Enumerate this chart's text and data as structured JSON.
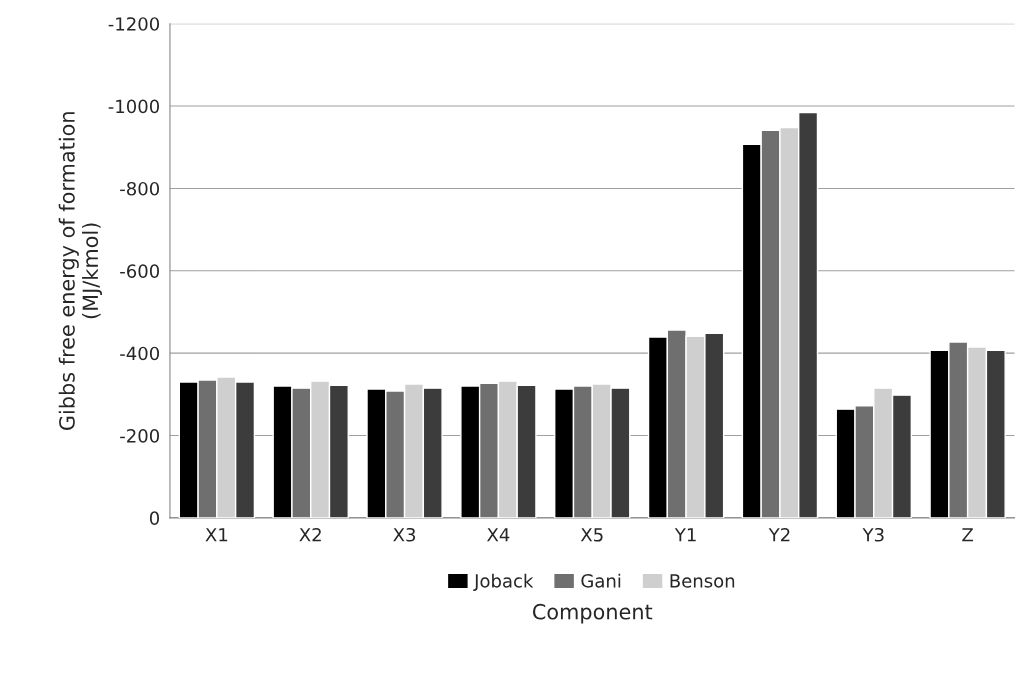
{
  "chart_data": {
    "type": "bar",
    "categories": [
      "X1",
      "X2",
      "X3",
      "X4",
      "X5",
      "Y1",
      "Y2",
      "Y3",
      "Z"
    ],
    "series": [
      {
        "name": "Joback",
        "color": "#000000",
        "values": [
          -330,
          -320,
          -313,
          -320,
          -313,
          -439,
          -907,
          -264,
          -407
        ]
      },
      {
        "name": "Gani",
        "color": "#6f6f6f",
        "values": [
          -335,
          -315,
          -308,
          -327,
          -320,
          -456,
          -941,
          -272,
          -427
        ]
      },
      {
        "name": "Benson",
        "color": "#cfcfcf",
        "values": [
          -342,
          -332,
          -325,
          -332,
          -325,
          -441,
          -948,
          -315,
          -415
        ]
      },
      {
        "color": "#3c3c3c",
        "values": [
          -330,
          -322,
          -315,
          -322,
          -315,
          -448,
          -984,
          -298,
          -407
        ]
      }
    ],
    "xlabel": "Component",
    "ylabel": "Gibbs free energy of formation\n(MJ/kmol)",
    "ylim": [
      0,
      -1200
    ],
    "yticks": [
      0,
      -200,
      -400,
      -600,
      -800,
      -1000,
      -1200
    ],
    "grid": "y",
    "legend": "bottom"
  }
}
